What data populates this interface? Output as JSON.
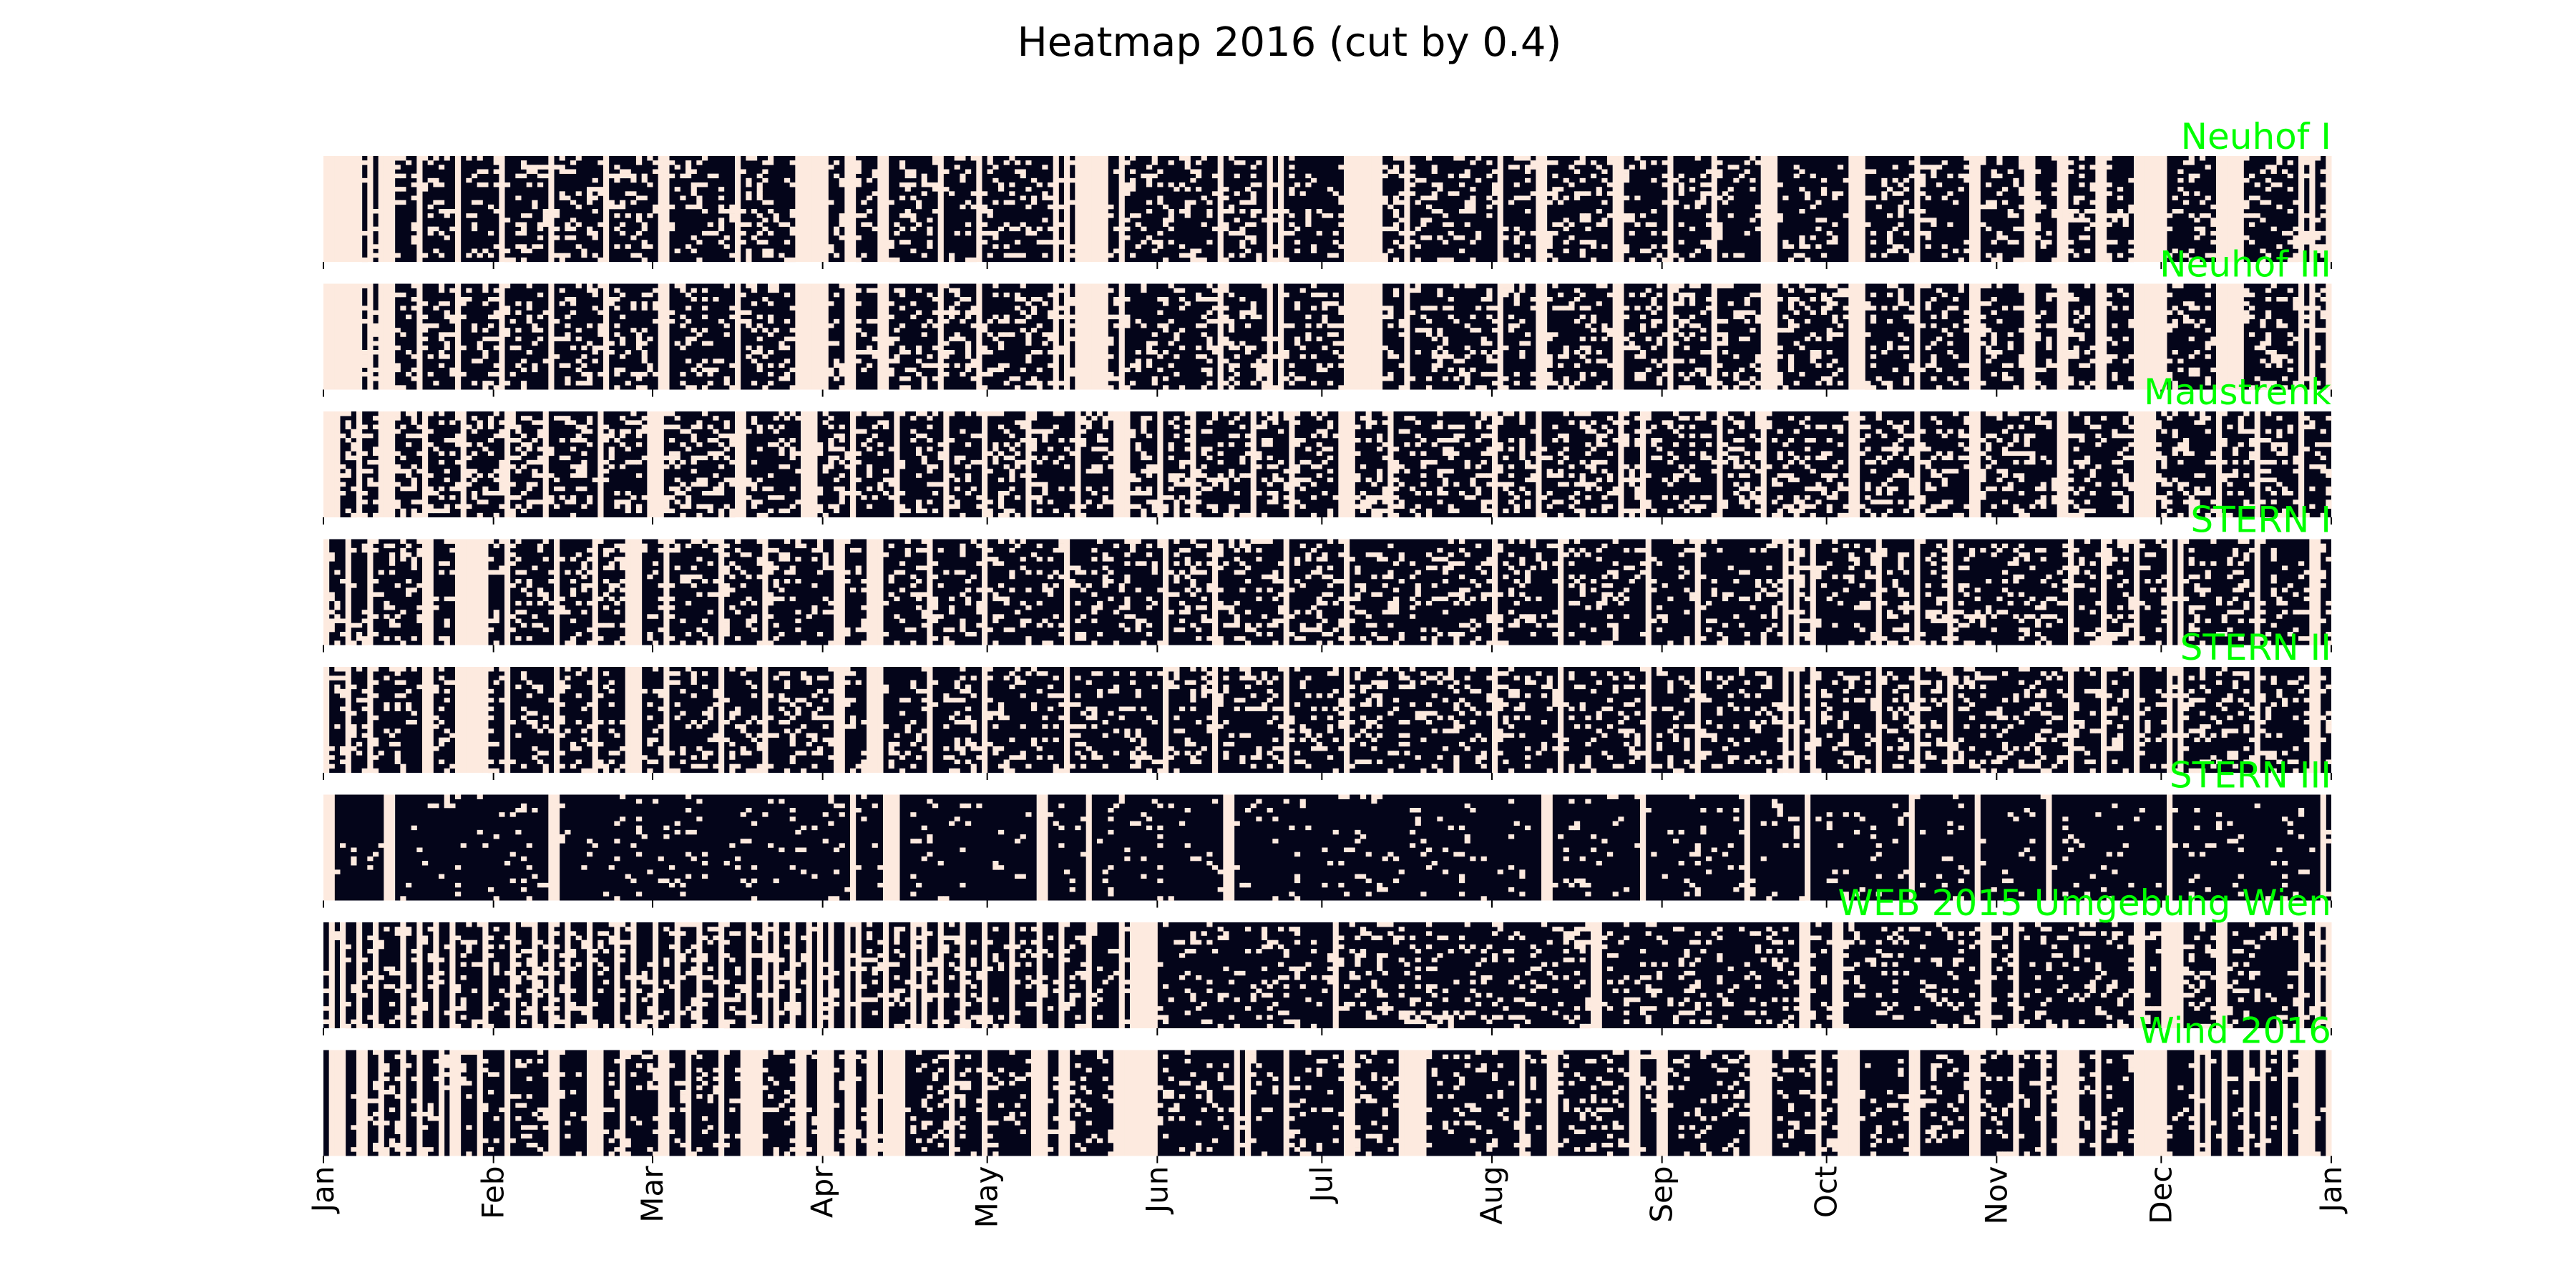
{
  "chart_data": {
    "type": "heatmap",
    "title": "Heatmap 2016 (cut by 0.4)",
    "year": 2016,
    "threshold": 0.4,
    "hours_per_day": 24,
    "colors": {
      "above": "#04051a",
      "below": "#fdeadf",
      "label": "#00ff00"
    },
    "x_ticks": [
      "Jan",
      "Feb",
      "Mar",
      "Apr",
      "May",
      "Jun",
      "Jul",
      "Aug",
      "Sep",
      "Oct",
      "Nov",
      "Dec",
      "Jan"
    ],
    "x_tick_days": [
      0,
      31,
      60,
      91,
      121,
      152,
      182,
      213,
      244,
      274,
      305,
      335,
      366
    ],
    "x_range_days": [
      0,
      366
    ],
    "series": [
      {
        "name": "Neuhof I",
        "light_days": [
          0,
          1,
          2,
          3,
          4,
          5,
          6,
          8,
          10,
          11,
          12,
          17,
          24,
          32,
          41,
          51,
          61,
          62,
          75,
          86,
          87,
          88,
          89,
          90,
          91,
          95,
          96,
          101,
          102,
          112,
          119,
          133,
          135,
          137,
          138,
          139,
          140,
          141,
          142,
          145,
          163,
          172,
          174,
          186,
          187,
          188,
          189,
          190,
          191,
          192,
          197,
          214,
          221,
          222,
          235,
          236,
          245,
          253,
          262,
          263,
          264,
          278,
          279,
          280,
          290,
          300,
          301,
          310,
          311,
          316,
          317,
          323,
          324,
          330,
          331,
          332,
          333,
          334,
          335,
          345,
          346,
          347,
          348,
          349,
          360,
          362,
          365
        ],
        "density": 0.2
      },
      {
        "name": "Neuhof III",
        "light_days": [
          0,
          1,
          2,
          3,
          4,
          5,
          6,
          8,
          10,
          11,
          12,
          17,
          24,
          32,
          41,
          51,
          61,
          62,
          75,
          86,
          87,
          88,
          89,
          90,
          91,
          95,
          96,
          101,
          102,
          112,
          119,
          133,
          135,
          137,
          138,
          139,
          140,
          141,
          142,
          145,
          163,
          172,
          174,
          186,
          187,
          188,
          189,
          190,
          191,
          192,
          197,
          214,
          221,
          222,
          235,
          236,
          245,
          253,
          262,
          263,
          264,
          278,
          279,
          280,
          290,
          300,
          301,
          310,
          311,
          316,
          317,
          323,
          324,
          330,
          331,
          332,
          333,
          334,
          335,
          345,
          346,
          347,
          348,
          349,
          360,
          362,
          365
        ],
        "density": 0.22
      },
      {
        "name": "Maustrenk",
        "light_days": [
          0,
          1,
          2,
          6,
          10,
          11,
          12,
          18,
          25,
          33,
          40,
          50,
          59,
          60,
          61,
          75,
          76,
          87,
          88,
          89,
          96,
          104,
          113,
          120,
          128,
          137,
          144,
          145,
          146,
          152,
          158,
          169,
          176,
          185,
          186,
          187,
          194,
          213,
          221,
          236,
          240,
          254,
          262,
          278,
          279,
          290,
          300,
          301,
          316,
          317,
          330,
          331,
          332,
          333,
          345,
          352,
          360
        ],
        "density": 0.25
      },
      {
        "name": "STERN I",
        "light_days": [
          0,
          4,
          8,
          18,
          19,
          24,
          25,
          26,
          27,
          28,
          29,
          33,
          42,
          49,
          55,
          56,
          57,
          62,
          72,
          80,
          93,
          94,
          99,
          100,
          101,
          110,
          120,
          135,
          153,
          162,
          175,
          186,
          213,
          225,
          241,
          250,
          266,
          268,
          271,
          283,
          290,
          296,
          318,
          324,
          330,
          336,
          338,
          352,
          362,
          363
        ],
        "density": 0.2
      },
      {
        "name": "STERN II",
        "light_days": [
          0,
          4,
          8,
          18,
          19,
          24,
          25,
          26,
          27,
          28,
          29,
          33,
          42,
          49,
          55,
          56,
          57,
          62,
          72,
          80,
          93,
          94,
          99,
          100,
          101,
          110,
          120,
          135,
          153,
          162,
          175,
          186,
          213,
          225,
          241,
          250,
          266,
          268,
          271,
          283,
          290,
          296,
          318,
          324,
          330,
          336,
          338,
          352,
          362,
          363
        ],
        "density": 0.2
      },
      {
        "name": "STERN III",
        "light_days": [
          0,
          1,
          11,
          12,
          41,
          42,
          96,
          102,
          103,
          104,
          130,
          131,
          139,
          164,
          165,
          222,
          223,
          240,
          259,
          270,
          289,
          301,
          314,
          336,
          364
        ],
        "density": 0.06
      },
      {
        "name": "WEB 2015 Umgebung Wien",
        "light_days": [
          1,
          3,
          6,
          9,
          14,
          17,
          20,
          23,
          29,
          34,
          38,
          41,
          44,
          48,
          53,
          56,
          60,
          64,
          68,
          72,
          77,
          80,
          82,
          85,
          88,
          90,
          92,
          95,
          97,
          102,
          107,
          109,
          112,
          116,
          120,
          125,
          130,
          134,
          139,
          145,
          147,
          148,
          149,
          150,
          151,
          184,
          231,
          232,
          269,
          270,
          275,
          276,
          302,
          303,
          308,
          330,
          331,
          335,
          336,
          337,
          338,
          345,
          346,
          360,
          363,
          365
        ],
        "density": 0.18
      },
      {
        "name": "Wind 2016",
        "light_days": [
          1,
          2,
          3,
          6,
          7,
          10,
          14,
          17,
          21,
          23,
          24,
          28,
          33,
          41,
          42,
          48,
          49,
          50,
          54,
          61,
          62,
          66,
          72,
          76,
          77,
          78,
          79,
          86,
          87,
          90,
          91,
          92,
          95,
          96,
          99,
          100,
          102,
          103,
          104,
          105,
          114,
          120,
          129,
          130,
          131,
          134,
          135,
          144,
          145,
          146,
          147,
          148,
          149,
          150,
          151,
          166,
          168,
          175,
          186,
          187,
          196,
          197,
          198,
          199,
          200,
          218,
          223,
          224,
          238,
          239,
          243,
          244,
          260,
          261,
          262,
          263,
          272,
          276,
          277,
          278,
          279,
          289,
          290,
          300,
          301,
          308,
          313,
          316,
          317,
          318,
          319,
          323,
          330,
          331,
          332,
          333,
          334,
          335,
          341,
          343,
          346,
          350,
          353,
          357,
          360,
          361,
          362,
          365
        ],
        "density": 0.15
      }
    ]
  }
}
